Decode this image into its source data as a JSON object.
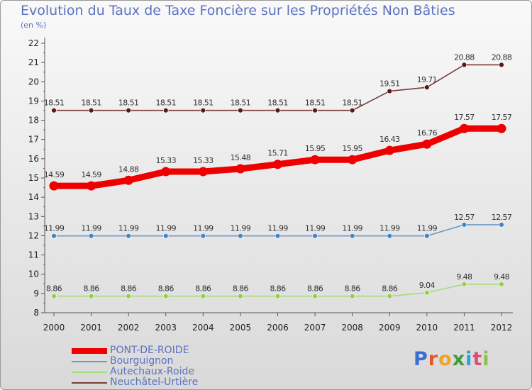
{
  "title": "Evolution du Taux de Taxe Foncière sur les Propriétés Non Bâties",
  "subtitle": "(en %)",
  "chart_data": {
    "type": "line",
    "title": "Evolution du Taux de Taxe Foncière sur les Propriétés Non Bâties",
    "ylabel": "(en %)",
    "xlabel": "",
    "ylim": [
      8,
      22
    ],
    "yticks": [
      "8",
      "9",
      "10",
      "11",
      "12",
      "13",
      "14",
      "15",
      "16",
      "17",
      "18",
      "19",
      "20",
      "21",
      "22"
    ],
    "categories": [
      "2000",
      "2001",
      "2002",
      "2003",
      "2004",
      "2005",
      "2006",
      "2007",
      "2008",
      "2009",
      "2010",
      "2011",
      "2012"
    ],
    "series": [
      {
        "name": "PONT-DE-ROIDE",
        "color": "#ee0000",
        "marker": "#ee0000",
        "values": [
          14.59,
          14.59,
          14.88,
          15.33,
          15.33,
          15.48,
          15.71,
          15.95,
          15.95,
          16.43,
          16.76,
          17.57,
          17.57
        ],
        "labels": [
          "14.59",
          "14.59",
          "14.88",
          "15.33",
          "15.33",
          "15.48",
          "15.71",
          "15.95",
          "15.95",
          "16.43",
          "16.76",
          "17.57",
          "17.57"
        ]
      },
      {
        "name": "Bourguignon",
        "color": "#6e9bc5",
        "marker": "#3d87c9",
        "values": [
          11.99,
          11.99,
          11.99,
          11.99,
          11.99,
          11.99,
          11.99,
          11.99,
          11.99,
          11.99,
          11.99,
          12.57,
          12.57
        ],
        "labels": [
          "11.99",
          "11.99",
          "11.99",
          "11.99",
          "11.99",
          "11.99",
          "11.99",
          "11.99",
          "11.99",
          "11.99",
          "11.99",
          "12.57",
          "12.57"
        ]
      },
      {
        "name": "Autechaux-Roide",
        "color": "#a8dc7a",
        "marker": "#8ed048",
        "values": [
          8.86,
          8.86,
          8.86,
          8.86,
          8.86,
          8.86,
          8.86,
          8.86,
          8.86,
          8.86,
          9.04,
          9.48,
          9.48
        ],
        "labels": [
          "8.86",
          "8.86",
          "8.86",
          "8.86",
          "8.86",
          "8.86",
          "8.86",
          "8.86",
          "8.86",
          "8.86",
          "9.04",
          "9.48",
          "9.48"
        ]
      },
      {
        "name": "Neuchâtel-Urtière",
        "color": "#7a3a3a",
        "marker": "#5e1515",
        "values": [
          18.51,
          18.51,
          18.51,
          18.51,
          18.51,
          18.51,
          18.51,
          18.51,
          18.51,
          19.51,
          19.71,
          20.88,
          20.88
        ],
        "labels": [
          "18.51",
          "18.51",
          "18.51",
          "18.51",
          "18.51",
          "18.51",
          "18.51",
          "18.51",
          "18.51",
          "19.51",
          "19.71",
          "20.88",
          "20.88"
        ]
      }
    ],
    "legend_position": "bottom-left",
    "grid": false
  },
  "logo": {
    "letters": [
      "P",
      "r",
      "o",
      "x",
      "i",
      "t",
      "i"
    ],
    "colors": [
      "#3a6fd1",
      "#e8552b",
      "#f4a321",
      "#3f9b3a",
      "#2aa3d6",
      "#e04a7d",
      "#8bc34a"
    ]
  }
}
